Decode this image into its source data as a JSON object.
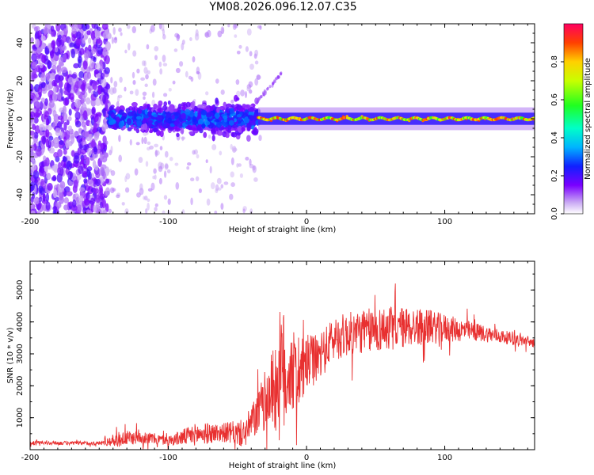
{
  "title": "YM08.2026.096.12.07.C35",
  "chart_data": [
    {
      "type": "heatmap",
      "xlabel": "Height of straight line (km)",
      "ylabel": "Frequency (Hz)",
      "xlim": [
        -200,
        165
      ],
      "ylim": [
        -50,
        50
      ],
      "xticks": [
        -200,
        -100,
        0,
        100
      ],
      "xtick_labels": [
        "-200",
        "-100",
        "0",
        "100"
      ],
      "yticks": [
        -40,
        -20,
        0,
        20,
        40
      ],
      "ytick_labels": [
        "-40",
        "-20",
        "0",
        "20",
        "40"
      ],
      "colorbar": {
        "label": "Normalized spectral amplitude",
        "range": [
          0,
          1
        ],
        "ticks": [
          0.0,
          0.2,
          0.4,
          0.6,
          0.8
        ],
        "tick_labels": [
          "0.0",
          "0.2",
          "0.4",
          "0.6",
          "0.8"
        ]
      },
      "regions": [
        {
          "x_start": -200,
          "x_end": -143,
          "description": "broadband noise",
          "freq_spread": 50,
          "amplitude": 0.12
        },
        {
          "x_start": -143,
          "x_end": -35,
          "description": "emerging signal",
          "freq_center": 0,
          "freq_spread": 8,
          "amplitude": 0.3
        },
        {
          "x_start": -35,
          "x_end": 165,
          "description": "narrow band line",
          "freq_center": 0,
          "freq_spread": 2,
          "amplitude": 0.95
        }
      ]
    },
    {
      "type": "line",
      "xlabel": "Height of straight line (km)",
      "ylabel": "SNR (10 * v/v)",
      "xlim": [
        -200,
        165
      ],
      "ylim": [
        0,
        5900
      ],
      "xticks": [
        -200,
        -100,
        0,
        100
      ],
      "xtick_labels": [
        "-200",
        "-100",
        "0",
        "100"
      ],
      "yticks": [
        1000,
        2000,
        3000,
        4000,
        5000
      ],
      "ytick_labels": [
        "1000",
        "2000",
        "3000",
        "4000",
        "5000"
      ],
      "color": "#e83030",
      "envelope": {
        "x": [
          -200,
          -150,
          -135,
          -120,
          -100,
          -80,
          -60,
          -45,
          -35,
          -25,
          -18,
          -12,
          -5,
          0,
          10,
          20,
          40,
          60,
          80,
          100,
          120,
          140,
          165
        ],
        "y": [
          210,
          200,
          330,
          400,
          280,
          480,
          540,
          500,
          1150,
          1900,
          2300,
          2500,
          2300,
          2700,
          2900,
          3500,
          3700,
          3800,
          3850,
          3800,
          3700,
          3550,
          3350
        ]
      },
      "noise_amplitude": {
        "x": [
          -200,
          -150,
          -135,
          -120,
          -100,
          -80,
          -60,
          -45,
          -35,
          -25,
          -18,
          -12,
          -5,
          0,
          10,
          20,
          40,
          60,
          80,
          100,
          120,
          140,
          165
        ],
        "y": [
          60,
          60,
          250,
          200,
          150,
          350,
          300,
          450,
          700,
          1200,
          2300,
          1400,
          1100,
          900,
          700,
          700,
          700,
          700,
          600,
          450,
          300,
          220,
          160
        ]
      }
    }
  ]
}
